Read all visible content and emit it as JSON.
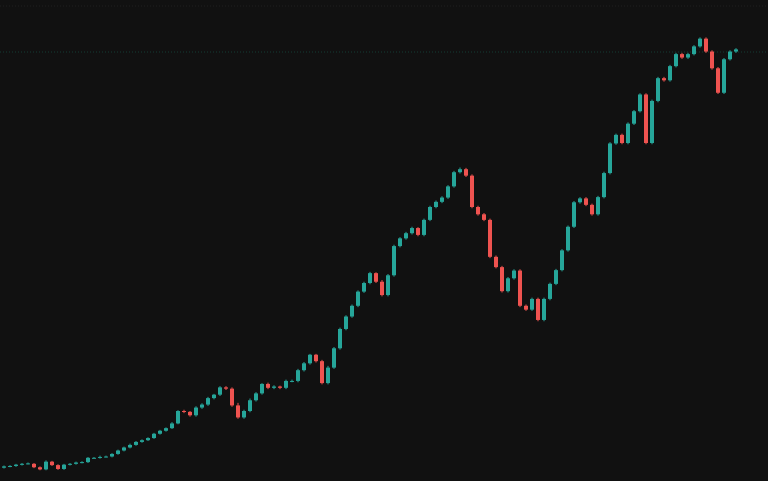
{
  "chart_data": {
    "type": "candlestick",
    "title": "",
    "xlabel": "",
    "ylabel": "",
    "grid": false,
    "price_line": {
      "value": 100.0,
      "color": "#123a32",
      "style": "dotted"
    },
    "colors": {
      "up": "#26a69a",
      "down": "#ef5350",
      "background": "#111111"
    },
    "ylim": [
      0,
      112
    ],
    "x": [
      1,
      2,
      3,
      4,
      5,
      6,
      7,
      8,
      9,
      10,
      11,
      12,
      13,
      14,
      15,
      16,
      17,
      18,
      19,
      20,
      21,
      22,
      23,
      24,
      25,
      26,
      27,
      28,
      29,
      30,
      31,
      32,
      33,
      34,
      35,
      36,
      37,
      38,
      39,
      40,
      41,
      42,
      43,
      44,
      45,
      46,
      47,
      48,
      49,
      50,
      51,
      52,
      53,
      54,
      55,
      56,
      57,
      58,
      59,
      60,
      61,
      62,
      63,
      64,
      65,
      66,
      67,
      68,
      69,
      70,
      71,
      72,
      73,
      74,
      75,
      76,
      77,
      78,
      79,
      80,
      81,
      82,
      83,
      84,
      85,
      86,
      87,
      88,
      89,
      90,
      91,
      92,
      93,
      94,
      95,
      96,
      97,
      98,
      99,
      100,
      101,
      102,
      103,
      104,
      105,
      106,
      107,
      108,
      109,
      110,
      111,
      112,
      113,
      114,
      115,
      116,
      117,
      118,
      119,
      120,
      121,
      122,
      123
    ],
    "open": [
      3.1,
      3.4,
      3.5,
      3.8,
      4.0,
      4.0,
      3.2,
      2.7,
      4.5,
      3.7,
      2.8,
      3.8,
      4.0,
      4.3,
      4.4,
      5.4,
      5.4,
      5.6,
      5.7,
      6.3,
      7.1,
      7.8,
      8.4,
      9.1,
      9.5,
      10.0,
      11.0,
      11.7,
      12.3,
      13.4,
      16.3,
      16.1,
      15.3,
      17.1,
      17.8,
      19.3,
      20.1,
      21.8,
      21.5,
      17.6,
      14.8,
      16.3,
      18.8,
      20.4,
      22.6,
      21.7,
      22.0,
      21.7,
      23.3,
      23.3,
      25.8,
      27.4,
      29.4,
      27.9,
      22.8,
      26.4,
      30.9,
      35.4,
      38.3,
      40.8,
      44.1,
      46.1,
      48.4,
      46.4,
      43.3,
      47.9,
      54.7,
      56.5,
      57.7,
      58.9,
      57.3,
      60.8,
      63.8,
      65.0,
      66.0,
      68.6,
      71.9,
      72.6,
      71.1,
      63.8,
      62.1,
      60.8,
      52.2,
      49.8,
      44.2,
      47.2,
      49.0,
      40.8,
      39.9,
      42.4,
      37.5,
      42.4,
      45.9,
      49.1,
      53.7,
      59.2,
      64.9,
      65.8,
      64.3,
      62.1,
      66.1,
      71.7,
      78.6,
      80.6,
      78.7,
      83.2,
      86.1,
      90.0,
      78.7,
      88.5,
      93.8,
      93.3,
      96.6,
      99.4,
      98.6,
      99.4,
      101.2,
      103.0,
      100.0,
      96.1,
      90.4,
      98.2,
      100.0
    ],
    "close": [
      3.4,
      3.5,
      3.8,
      4.0,
      4.1,
      3.2,
      2.7,
      4.5,
      3.7,
      2.8,
      3.8,
      4.0,
      4.3,
      4.4,
      5.4,
      5.4,
      5.6,
      5.7,
      6.3,
      7.1,
      7.8,
      8.4,
      9.1,
      9.5,
      10.0,
      11.0,
      11.7,
      12.3,
      13.4,
      16.3,
      16.1,
      15.3,
      17.1,
      17.8,
      19.3,
      20.1,
      21.8,
      21.5,
      17.6,
      14.8,
      16.3,
      18.8,
      20.4,
      22.6,
      21.7,
      22.0,
      21.7,
      23.3,
      23.3,
      25.8,
      27.4,
      29.4,
      27.9,
      22.8,
      26.4,
      30.9,
      35.4,
      38.3,
      40.8,
      44.1,
      46.1,
      48.4,
      46.4,
      43.3,
      47.9,
      54.7,
      56.5,
      57.7,
      58.9,
      57.3,
      60.8,
      63.8,
      65.0,
      66.0,
      68.6,
      71.9,
      72.6,
      71.1,
      63.8,
      62.1,
      60.8,
      52.2,
      49.8,
      44.2,
      47.2,
      49.0,
      40.8,
      39.9,
      42.4,
      37.5,
      42.4,
      45.9,
      49.1,
      53.7,
      59.2,
      64.9,
      65.8,
      64.3,
      62.1,
      66.1,
      71.7,
      78.6,
      80.6,
      78.7,
      83.2,
      86.1,
      90.0,
      78.7,
      88.5,
      93.8,
      93.3,
      96.6,
      99.4,
      98.6,
      99.4,
      101.2,
      103.0,
      100.0,
      96.1,
      90.4,
      98.2,
      100.0,
      100.5
    ],
    "high": [
      3.6,
      3.7,
      4.0,
      4.2,
      4.3,
      4.2,
      3.4,
      4.8,
      4.7,
      3.9,
      4.0,
      4.2,
      4.5,
      4.6,
      5.6,
      5.6,
      5.9,
      5.9,
      6.5,
      7.3,
      8.0,
      8.7,
      9.3,
      9.7,
      10.2,
      11.2,
      11.9,
      12.5,
      13.7,
      16.5,
      16.6,
      16.3,
      17.4,
      18.1,
      19.6,
      20.3,
      22.1,
      22.1,
      21.8,
      18.2,
      16.6,
      19.2,
      20.7,
      22.8,
      22.9,
      22.3,
      22.2,
      23.6,
      23.6,
      26.1,
      27.7,
      29.6,
      29.6,
      28.2,
      26.8,
      31.2,
      35.7,
      38.6,
      41.1,
      44.4,
      46.4,
      48.7,
      48.6,
      46.8,
      48.2,
      55.0,
      56.8,
      58.0,
      59.2,
      59.1,
      61.1,
      64.1,
      65.3,
      66.3,
      68.9,
      72.2,
      73.0,
      72.9,
      71.4,
      64.1,
      62.4,
      61.1,
      52.5,
      50.1,
      47.5,
      49.3,
      49.3,
      41.1,
      42.7,
      42.7,
      42.7,
      46.2,
      49.4,
      54.0,
      59.5,
      65.2,
      66.1,
      66.1,
      64.6,
      66.4,
      72.0,
      78.9,
      80.9,
      80.9,
      83.5,
      86.4,
      90.3,
      90.3,
      88.8,
      94.1,
      94.1,
      96.9,
      99.7,
      99.7,
      99.7,
      101.5,
      103.3,
      103.3,
      100.3,
      96.4,
      98.5,
      100.3,
      100.8
    ],
    "low": [
      2.9,
      3.2,
      3.3,
      3.6,
      3.8,
      3.0,
      2.5,
      2.5,
      3.5,
      2.6,
      2.6,
      3.6,
      3.8,
      4.1,
      4.2,
      5.2,
      5.2,
      5.4,
      5.5,
      6.1,
      6.9,
      7.6,
      8.2,
      8.9,
      9.3,
      9.8,
      10.8,
      11.5,
      12.1,
      13.2,
      15.8,
      15.0,
      15.0,
      16.8,
      17.5,
      19.0,
      19.8,
      21.2,
      17.3,
      14.5,
      14.5,
      16.0,
      18.5,
      20.1,
      21.4,
      21.4,
      21.4,
      21.4,
      23.0,
      23.0,
      25.5,
      27.1,
      27.6,
      22.5,
      22.5,
      26.1,
      30.6,
      35.1,
      38.0,
      40.5,
      43.8,
      45.8,
      46.1,
      43.0,
      43.0,
      47.6,
      54.4,
      56.2,
      57.4,
      57.0,
      57.0,
      60.5,
      63.5,
      64.7,
      65.7,
      68.3,
      71.6,
      70.8,
      63.5,
      61.8,
      60.5,
      51.9,
      49.5,
      43.9,
      43.9,
      46.9,
      40.5,
      39.6,
      39.6,
      37.2,
      37.2,
      42.1,
      45.6,
      48.8,
      53.4,
      58.9,
      64.6,
      64.0,
      61.8,
      61.8,
      65.8,
      71.4,
      78.3,
      78.4,
      78.4,
      82.9,
      85.8,
      78.4,
      78.4,
      88.2,
      93.0,
      93.0,
      96.3,
      98.3,
      98.3,
      99.1,
      100.9,
      99.7,
      95.8,
      90.1,
      90.1,
      97.9,
      99.7
    ]
  }
}
